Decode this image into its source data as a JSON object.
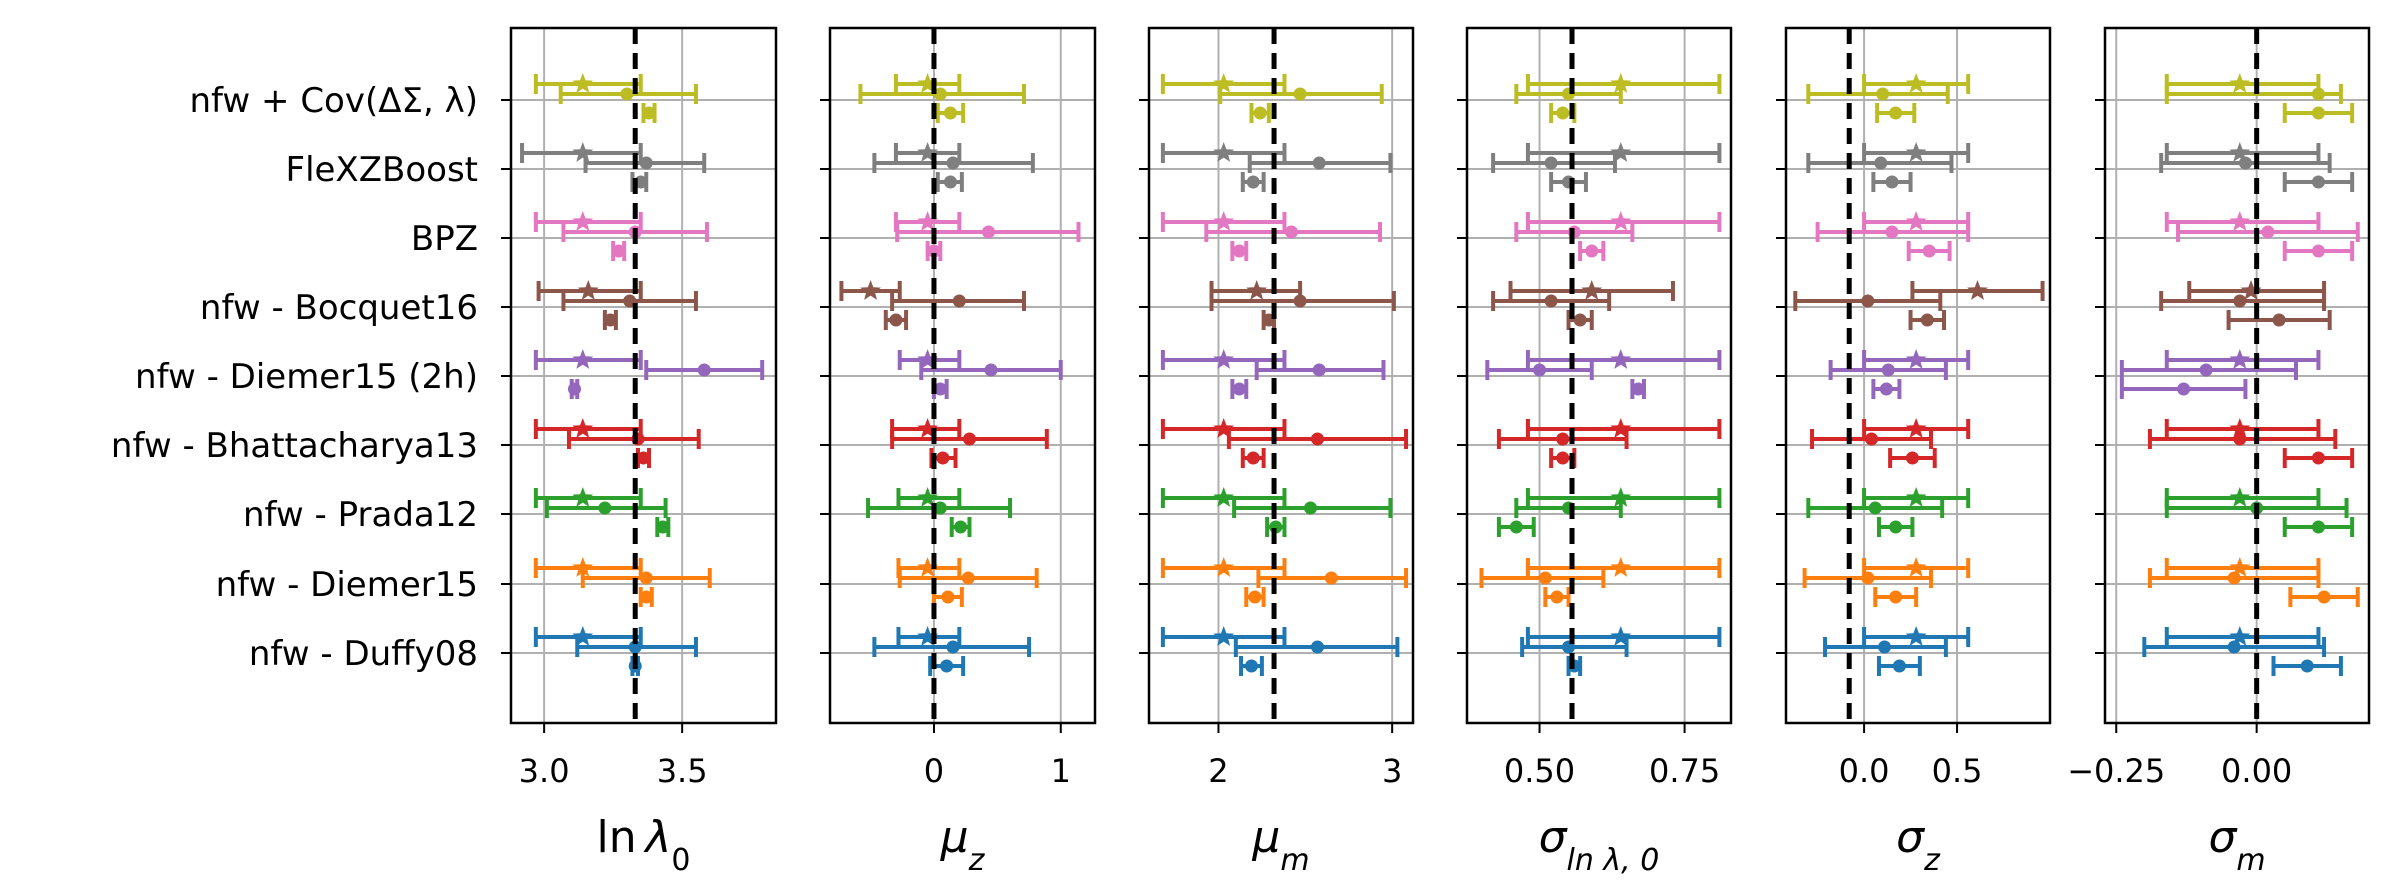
{
  "row_labels": [
    "nfw + Cov(ΔΣ, λ)",
    "FleXZBoost",
    "BPZ",
    "nfw - Bocquet16",
    "nfw - Diemer15 (2h)",
    "nfw - Bhattacharya13",
    "nfw - Prada12",
    "nfw - Diemer15",
    "nfw - Duffy08"
  ],
  "colors": {
    "nfw + Cov(ΔΣ, λ)": "#bcbd22",
    "FleXZBoost": "#7f7f7f",
    "BPZ": "#e377c2",
    "nfw - Bocquet16": "#8c564b",
    "nfw - Diemer15 (2h)": "#9467bd",
    "nfw - Bhattacharya13": "#d62728",
    "nfw - Prada12": "#2ca02c",
    "nfw - Diemer15": "#ff7f0e",
    "nfw - Duffy08": "#1f77b4"
  },
  "chart_data": [
    {
      "type": "scatter",
      "xlabel": {
        "main": "ln",
        "italic": "λ",
        "sub": "0"
      },
      "xlim": [
        2.88,
        3.84
      ],
      "xticks": [
        3.0,
        3.5
      ],
      "xtick_labels": [
        "3.0",
        "3.5"
      ],
      "grid": true,
      "reference_line": 3.33,
      "markers": [
        "star",
        "dot",
        "dot"
      ],
      "series": [
        [
          [
            3.14,
            2.97,
            3.35
          ],
          [
            3.3,
            3.06,
            3.55
          ],
          [
            3.38,
            3.36,
            3.4
          ]
        ],
        [
          [
            3.14,
            2.92,
            3.35
          ],
          [
            3.37,
            3.15,
            3.58
          ],
          [
            3.35,
            3.32,
            3.37
          ]
        ],
        [
          [
            3.14,
            2.97,
            3.35
          ],
          [
            3.33,
            3.07,
            3.59
          ],
          [
            3.27,
            3.25,
            3.29
          ]
        ],
        [
          [
            3.16,
            2.98,
            3.35
          ],
          [
            3.31,
            3.07,
            3.55
          ],
          [
            3.24,
            3.22,
            3.26
          ]
        ],
        [
          [
            3.14,
            2.97,
            3.35
          ],
          [
            3.58,
            3.37,
            3.79
          ],
          [
            3.11,
            3.1,
            3.12
          ]
        ],
        [
          [
            3.14,
            2.97,
            3.35
          ],
          [
            3.34,
            3.09,
            3.56
          ],
          [
            3.36,
            3.34,
            3.38
          ]
        ],
        [
          [
            3.14,
            2.97,
            3.35
          ],
          [
            3.22,
            3.01,
            3.44
          ],
          [
            3.43,
            3.41,
            3.45
          ]
        ],
        [
          [
            3.14,
            2.97,
            3.35
          ],
          [
            3.37,
            3.14,
            3.6
          ],
          [
            3.37,
            3.35,
            3.39
          ]
        ],
        [
          [
            3.14,
            2.97,
            3.35
          ],
          [
            3.33,
            3.12,
            3.55
          ],
          [
            3.33,
            3.32,
            3.34
          ]
        ]
      ]
    },
    {
      "type": "scatter",
      "xlabel": {
        "italic": "μ",
        "sub": "z"
      },
      "xlim": [
        -0.82,
        1.27
      ],
      "xticks": [
        0,
        1
      ],
      "xtick_labels": [
        "0",
        "1"
      ],
      "grid": true,
      "reference_line": 0.0,
      "markers": [
        "star",
        "dot",
        "dot"
      ],
      "series": [
        [
          [
            -0.05,
            -0.3,
            0.2
          ],
          [
            0.05,
            -0.58,
            0.71
          ],
          [
            0.13,
            0.03,
            0.23
          ]
        ],
        [
          [
            -0.05,
            -0.3,
            0.2
          ],
          [
            0.15,
            -0.47,
            0.78
          ],
          [
            0.13,
            0.03,
            0.22
          ]
        ],
        [
          [
            -0.05,
            -0.3,
            0.2
          ],
          [
            0.43,
            -0.29,
            1.14
          ],
          [
            0.0,
            -0.05,
            0.05
          ]
        ],
        [
          [
            -0.5,
            -0.73,
            -0.27
          ],
          [
            0.2,
            -0.33,
            0.71
          ],
          [
            -0.3,
            -0.38,
            -0.22
          ]
        ],
        [
          [
            -0.05,
            -0.27,
            0.2
          ],
          [
            0.45,
            -0.1,
            1.0
          ],
          [
            0.05,
            0.0,
            0.1
          ]
        ],
        [
          [
            -0.05,
            -0.33,
            0.2
          ],
          [
            0.28,
            -0.33,
            0.89
          ],
          [
            0.07,
            -0.02,
            0.17
          ]
        ],
        [
          [
            -0.05,
            -0.28,
            0.2
          ],
          [
            0.05,
            -0.52,
            0.6
          ],
          [
            0.21,
            0.14,
            0.28
          ]
        ],
        [
          [
            -0.05,
            -0.28,
            0.2
          ],
          [
            0.27,
            -0.27,
            0.81
          ],
          [
            0.11,
            0.0,
            0.22
          ]
        ],
        [
          [
            -0.05,
            -0.28,
            0.2
          ],
          [
            0.15,
            -0.47,
            0.75
          ],
          [
            0.1,
            -0.03,
            0.23
          ]
        ]
      ]
    },
    {
      "type": "scatter",
      "xlabel": {
        "italic": "μ",
        "sub": "m"
      },
      "xlim": [
        1.6,
        3.12
      ],
      "xticks": [
        2,
        3
      ],
      "xtick_labels": [
        "2",
        "3"
      ],
      "grid": true,
      "reference_line": 2.32,
      "markers": [
        "star",
        "dot",
        "dot"
      ],
      "series": [
        [
          [
            2.03,
            1.68,
            2.38
          ],
          [
            2.47,
            2.01,
            2.94
          ],
          [
            2.24,
            2.19,
            2.29
          ]
        ],
        [
          [
            2.03,
            1.68,
            2.38
          ],
          [
            2.58,
            2.18,
            2.99
          ],
          [
            2.2,
            2.14,
            2.26
          ]
        ],
        [
          [
            2.03,
            1.68,
            2.38
          ],
          [
            2.42,
            1.93,
            2.93
          ],
          [
            2.12,
            2.08,
            2.16
          ]
        ],
        [
          [
            2.22,
            1.96,
            2.47
          ],
          [
            2.47,
            1.96,
            3.01
          ],
          [
            2.29,
            2.26,
            2.32
          ]
        ],
        [
          [
            2.03,
            1.68,
            2.38
          ],
          [
            2.58,
            2.22,
            2.95
          ],
          [
            2.12,
            2.08,
            2.16
          ]
        ],
        [
          [
            2.03,
            1.68,
            2.38
          ],
          [
            2.57,
            2.06,
            3.08
          ],
          [
            2.2,
            2.14,
            2.26
          ]
        ],
        [
          [
            2.03,
            1.68,
            2.38
          ],
          [
            2.53,
            2.09,
            2.99
          ],
          [
            2.33,
            2.28,
            2.38
          ]
        ],
        [
          [
            2.03,
            1.68,
            2.38
          ],
          [
            2.65,
            2.23,
            3.08
          ],
          [
            2.21,
            2.16,
            2.26
          ]
        ],
        [
          [
            2.03,
            1.68,
            2.38
          ],
          [
            2.57,
            2.1,
            3.03
          ],
          [
            2.19,
            2.13,
            2.25
          ]
        ]
      ]
    },
    {
      "type": "scatter",
      "xlabel": {
        "italic": "σ",
        "sub": "ln λ, 0"
      },
      "xlim": [
        0.375,
        0.83
      ],
      "xticks": [
        0.5,
        0.75
      ],
      "xtick_labels": [
        "0.50",
        "0.75"
      ],
      "grid": true,
      "reference_line": 0.556,
      "markers": [
        "star",
        "dot",
        "dot"
      ],
      "series": [
        [
          [
            0.64,
            0.48,
            0.81
          ],
          [
            0.55,
            0.46,
            0.64
          ],
          [
            0.54,
            0.52,
            0.56
          ]
        ],
        [
          [
            0.64,
            0.48,
            0.81
          ],
          [
            0.52,
            0.42,
            0.63
          ],
          [
            0.55,
            0.52,
            0.58
          ]
        ],
        [
          [
            0.64,
            0.48,
            0.81
          ],
          [
            0.56,
            0.46,
            0.66
          ],
          [
            0.59,
            0.57,
            0.61
          ]
        ],
        [
          [
            0.59,
            0.45,
            0.73
          ],
          [
            0.52,
            0.42,
            0.62
          ],
          [
            0.57,
            0.55,
            0.59
          ]
        ],
        [
          [
            0.64,
            0.48,
            0.81
          ],
          [
            0.5,
            0.41,
            0.59
          ],
          [
            0.67,
            0.66,
            0.68
          ]
        ],
        [
          [
            0.64,
            0.48,
            0.81
          ],
          [
            0.54,
            0.43,
            0.65
          ],
          [
            0.54,
            0.52,
            0.56
          ]
        ],
        [
          [
            0.64,
            0.48,
            0.81
          ],
          [
            0.55,
            0.46,
            0.64
          ],
          [
            0.46,
            0.43,
            0.49
          ]
        ],
        [
          [
            0.64,
            0.48,
            0.81
          ],
          [
            0.51,
            0.4,
            0.61
          ],
          [
            0.53,
            0.51,
            0.55
          ]
        ],
        [
          [
            0.64,
            0.48,
            0.81
          ],
          [
            0.55,
            0.47,
            0.65
          ],
          [
            0.56,
            0.55,
            0.57
          ]
        ]
      ]
    },
    {
      "type": "scatter",
      "xlabel": {
        "italic": "σ",
        "sub": "z"
      },
      "xlim": [
        -0.42,
        1.0
      ],
      "xticks": [
        0.0,
        0.5
      ],
      "xtick_labels": [
        "0.0",
        "0.5"
      ],
      "grid": true,
      "reference_line": -0.08,
      "markers": [
        "star",
        "dot",
        "dot"
      ],
      "series": [
        [
          [
            0.28,
            0.0,
            0.56
          ],
          [
            0.1,
            -0.3,
            0.45
          ],
          [
            0.17,
            0.07,
            0.27
          ]
        ],
        [
          [
            0.28,
            0.0,
            0.56
          ],
          [
            0.09,
            -0.3,
            0.47
          ],
          [
            0.15,
            0.05,
            0.25
          ]
        ],
        [
          [
            0.28,
            0.0,
            0.56
          ],
          [
            0.15,
            -0.25,
            0.56
          ],
          [
            0.35,
            0.24,
            0.46
          ]
        ],
        [
          [
            0.61,
            0.26,
            0.96
          ],
          [
            0.02,
            -0.37,
            0.41
          ],
          [
            0.34,
            0.25,
            0.43
          ]
        ],
        [
          [
            0.28,
            0.0,
            0.56
          ],
          [
            0.13,
            -0.18,
            0.44
          ],
          [
            0.12,
            0.05,
            0.19
          ]
        ],
        [
          [
            0.28,
            0.0,
            0.56
          ],
          [
            0.04,
            -0.28,
            0.36
          ],
          [
            0.26,
            0.14,
            0.38
          ]
        ],
        [
          [
            0.28,
            0.0,
            0.56
          ],
          [
            0.06,
            -0.3,
            0.42
          ],
          [
            0.17,
            0.08,
            0.26
          ]
        ],
        [
          [
            0.28,
            0.0,
            0.56
          ],
          [
            0.02,
            -0.32,
            0.36
          ],
          [
            0.17,
            0.06,
            0.28
          ]
        ],
        [
          [
            0.28,
            0.0,
            0.56
          ],
          [
            0.11,
            -0.21,
            0.44
          ],
          [
            0.19,
            0.08,
            0.3
          ]
        ]
      ]
    },
    {
      "type": "scatter",
      "xlabel": {
        "italic": "σ",
        "sub": "m"
      },
      "xlim": [
        -0.27,
        0.2
      ],
      "xticks": [
        -0.25,
        0.0
      ],
      "xtick_labels": [
        "−0.25",
        "0.00"
      ],
      "grid": true,
      "reference_line": 0.0,
      "markers": [
        "star",
        "dot",
        "dot"
      ],
      "series": [
        [
          [
            -0.03,
            -0.16,
            0.11
          ],
          [
            0.11,
            -0.16,
            0.15
          ],
          [
            0.11,
            0.05,
            0.17
          ]
        ],
        [
          [
            -0.03,
            -0.16,
            0.11
          ],
          [
            -0.02,
            -0.17,
            0.13
          ],
          [
            0.11,
            0.05,
            0.17
          ]
        ],
        [
          [
            -0.03,
            -0.16,
            0.11
          ],
          [
            0.02,
            -0.14,
            0.18
          ],
          [
            0.11,
            0.05,
            0.17
          ]
        ],
        [
          [
            -0.01,
            -0.12,
            0.12
          ],
          [
            -0.03,
            -0.17,
            0.12
          ],
          [
            0.04,
            -0.05,
            0.13
          ]
        ],
        [
          [
            -0.03,
            -0.16,
            0.11
          ],
          [
            -0.09,
            -0.24,
            0.07
          ],
          [
            -0.13,
            -0.24,
            -0.02
          ]
        ],
        [
          [
            -0.03,
            -0.16,
            0.11
          ],
          [
            -0.03,
            -0.19,
            0.14
          ],
          [
            0.11,
            0.05,
            0.17
          ]
        ],
        [
          [
            -0.03,
            -0.16,
            0.11
          ],
          [
            0.0,
            -0.16,
            0.16
          ],
          [
            0.11,
            0.05,
            0.17
          ]
        ],
        [
          [
            -0.03,
            -0.16,
            0.11
          ],
          [
            -0.04,
            -0.19,
            0.11
          ],
          [
            0.12,
            0.06,
            0.18
          ]
        ],
        [
          [
            -0.03,
            -0.16,
            0.11
          ],
          [
            -0.04,
            -0.2,
            0.12
          ],
          [
            0.09,
            0.03,
            0.15
          ]
        ]
      ]
    }
  ]
}
